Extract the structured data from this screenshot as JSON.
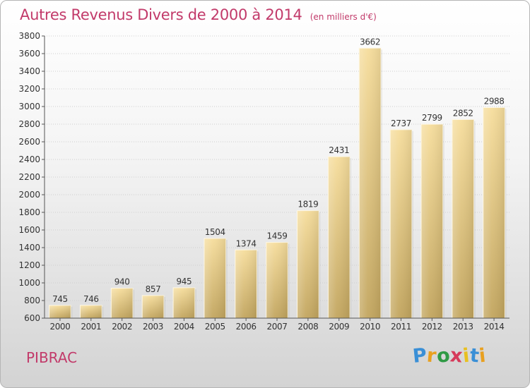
{
  "header": {
    "title": "Autres Revenus Divers de 2000 à 2014",
    "unit": "(en milliers d'€)"
  },
  "footer": {
    "city": "PIBRAC",
    "brand": {
      "letters": [
        "P",
        "r",
        "o",
        "x",
        "i",
        "t",
        "i"
      ],
      "colors": [
        "#3a8fd6",
        "#e8a020",
        "#2f9a45",
        "#d63a5a",
        "#e8c020",
        "#3a8fd6",
        "#e8a020"
      ]
    }
  },
  "chart_data": {
    "type": "bar",
    "title": "Autres Revenus Divers de 2000 à 2014",
    "categories": [
      "2000",
      "2001",
      "2002",
      "2003",
      "2004",
      "2005",
      "2006",
      "2007",
      "2008",
      "2009",
      "2010",
      "2011",
      "2012",
      "2013",
      "2014"
    ],
    "values": [
      745,
      746,
      940,
      857,
      945,
      1504,
      1374,
      1459,
      1819,
      2431,
      3662,
      2737,
      2799,
      2852,
      2988
    ],
    "value_labels": [
      "745",
      "746",
      "940",
      "857",
      "945",
      "1504",
      "1374",
      "1459",
      "1819",
      "2431",
      "3662",
      "2737",
      "2799",
      "2852",
      "2988"
    ],
    "y_ticks": [
      "600",
      "800",
      "1000",
      "1200",
      "1400",
      "1600",
      "1800",
      "2000",
      "2200",
      "2400",
      "2600",
      "2800",
      "3000",
      "3200",
      "3400",
      "3600",
      "3800"
    ],
    "ylim": [
      600,
      3800
    ],
    "grid": true,
    "bar_color": "#e0c47a"
  }
}
